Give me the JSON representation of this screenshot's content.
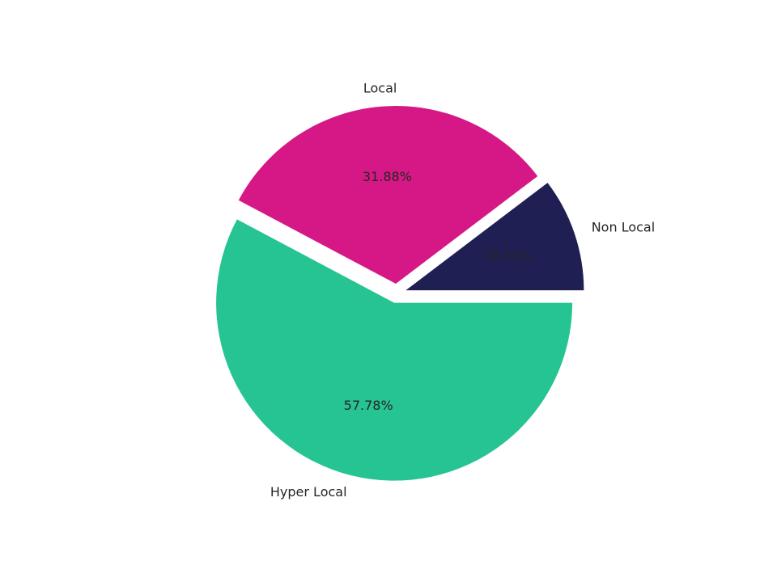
{
  "chart_data": {
    "type": "pie",
    "categories": [
      "Non Local",
      "Local",
      "Hyper Local"
    ],
    "values": [
      10.34,
      31.88,
      57.78
    ],
    "value_labels": [
      "10.34%",
      "31.88%",
      "57.78%"
    ],
    "colors": [
      "#1f1f54",
      "#d61887",
      "#25c492"
    ]
  }
}
